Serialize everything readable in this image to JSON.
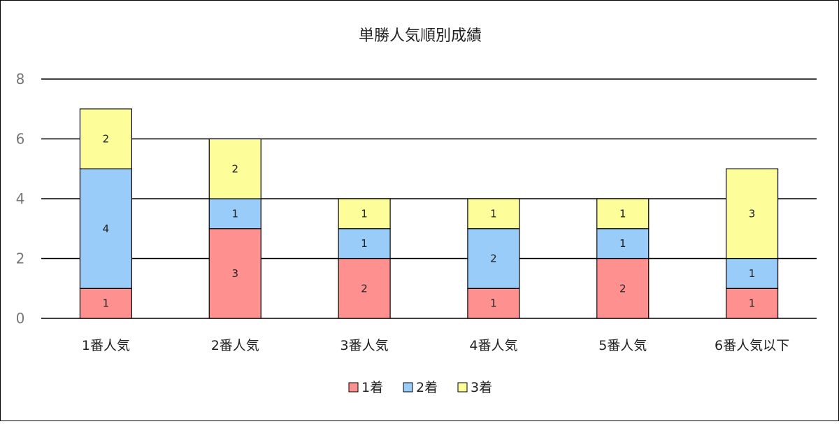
{
  "chart_data": {
    "type": "bar",
    "stacked": true,
    "title": "単勝人気順別成績",
    "xlabel": "",
    "ylabel": "",
    "categories": [
      "1番人気",
      "2番人気",
      "3番人気",
      "4番人気",
      "5番人気",
      "6番人気以下"
    ],
    "series": [
      {
        "name": "1着",
        "values": [
          1,
          3,
          2,
          1,
          2,
          1
        ],
        "color": "#ff9090"
      },
      {
        "name": "2着",
        "values": [
          4,
          1,
          1,
          2,
          1,
          1
        ],
        "color": "#99ccf8"
      },
      {
        "name": "3着",
        "values": [
          2,
          2,
          1,
          1,
          1,
          3
        ],
        "color": "#fdfd9a"
      }
    ],
    "ylim": [
      0,
      8
    ],
    "yticks": [
      0,
      2,
      4,
      6,
      8
    ],
    "grid": true,
    "legend_position": "bottom"
  }
}
